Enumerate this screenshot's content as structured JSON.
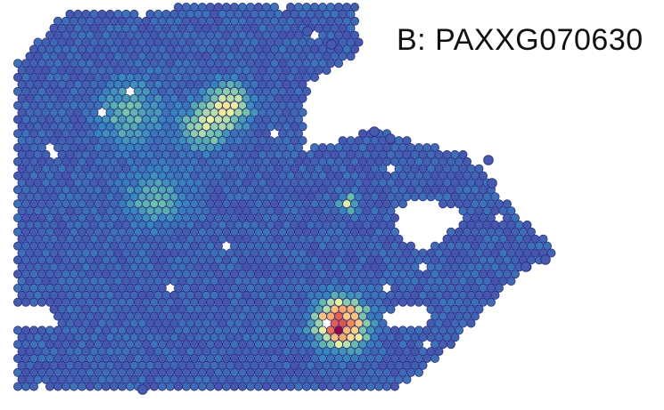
{
  "chart_data": {
    "type": "scatter",
    "subtype": "spatial-expression-spot-map",
    "title": "B: PAXXG070630",
    "colormap": [
      "#4a4aa8",
      "#3288bd",
      "#66c2a5",
      "#abdda4",
      "#e6f598",
      "#fee08b",
      "#fdae61",
      "#f46d43",
      "#d53e4f",
      "#9e0142"
    ],
    "spot_outline_color": "#2b2b8c",
    "background_expression": 0.02,
    "hotspots": [
      {
        "col": 40,
        "row": 45,
        "peak": 1.0,
        "spread": 1.8
      },
      {
        "col": 26,
        "row": 14,
        "peak": 0.45,
        "spread": 1.6
      },
      {
        "col": 23,
        "row": 17,
        "peak": 0.3,
        "spread": 1.8
      },
      {
        "col": 41,
        "row": 28,
        "peak": 0.42,
        "spread": 0.6
      },
      {
        "col": 14,
        "row": 15,
        "peak": 0.18,
        "spread": 2.5
      },
      {
        "col": 17,
        "row": 27,
        "peak": 0.15,
        "spread": 2.5
      }
    ],
    "legend": "none",
    "grid": false
  }
}
